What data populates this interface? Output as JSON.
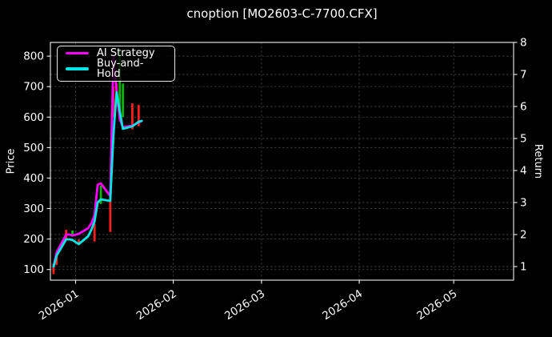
{
  "window": {
    "title": "cnoption [MO2603-C-7700.CFX]"
  },
  "chart_data": {
    "type": "line",
    "subtype": "candlestick-plus-line",
    "title": "cnoption [MO2603-C-7700.CFX]",
    "x_axis": {
      "ticks": [
        "2026-01",
        "2026-02",
        "2026-03",
        "2026-04",
        "2026-05"
      ],
      "range": [
        "2025-12-24",
        "2026-05-20"
      ],
      "tick_rotation_deg": -33
    },
    "left_axis": {
      "label": "Price",
      "ticks": [
        100,
        200,
        300,
        400,
        500,
        600,
        700,
        800
      ],
      "range": [
        65,
        845
      ]
    },
    "right_axis": {
      "label": "Return",
      "ticks": [
        1,
        2,
        3,
        4,
        5,
        6,
        7,
        8
      ],
      "range": [
        0.575,
        8.0
      ]
    },
    "legend": {
      "position": "upper-left",
      "entries": [
        {
          "label": "AI Strategy",
          "color": "#ff00ff"
        },
        {
          "label": "Buy-and-Hold",
          "color": "#00e6e6"
        }
      ]
    },
    "grid": {
      "on": true,
      "style": "dashed"
    },
    "dates": [
      "2025-12-25",
      "2025-12-26",
      "2025-12-29",
      "2025-12-30",
      "2025-12-31",
      "2026-01-02",
      "2026-01-05",
      "2026-01-06",
      "2026-01-07",
      "2026-01-08",
      "2026-01-09",
      "2026-01-12",
      "2026-01-13",
      "2026-01-14",
      "2026-01-15",
      "2026-01-16",
      "2026-01-19",
      "2026-01-20",
      "2026-01-21",
      "2026-01-22"
    ],
    "series": [
      {
        "name": "AI Strategy",
        "axis": "return",
        "color": "#ff00ff",
        "values": [
          1.0,
          1.45,
          2.0,
          2.0,
          1.97,
          2.02,
          2.2,
          2.35,
          2.6,
          3.55,
          3.6,
          3.2,
          7.55,
          6.5,
          5.6,
          5.35,
          5.4,
          5.45,
          5.5,
          5.55
        ]
      },
      {
        "name": "Buy-and-Hold",
        "axis": "return",
        "color": "#00e6e6",
        "values": [
          1.0,
          1.35,
          1.85,
          1.85,
          1.83,
          1.7,
          1.95,
          2.15,
          2.4,
          3.0,
          3.1,
          3.05,
          5.1,
          6.45,
          5.85,
          5.3,
          5.38,
          5.45,
          5.52,
          5.55
        ]
      }
    ],
    "candles": [
      {
        "date": "2025-12-25",
        "low": 85,
        "high": 120,
        "dir": "up"
      },
      {
        "date": "2025-12-26",
        "low": 115,
        "high": 155,
        "dir": "up"
      },
      {
        "date": "2025-12-29",
        "low": 200,
        "high": 230,
        "dir": "up"
      },
      {
        "date": "2025-12-31",
        "low": 208,
        "high": 228,
        "dir": "down"
      },
      {
        "date": "2026-01-02",
        "low": 180,
        "high": 198,
        "dir": "up"
      },
      {
        "date": "2026-01-07",
        "low": 192,
        "high": 250,
        "dir": "up"
      },
      {
        "date": "2026-01-09",
        "low": 315,
        "high": 375,
        "dir": "down"
      },
      {
        "date": "2026-01-12",
        "low": 223,
        "high": 355,
        "dir": "up"
      },
      {
        "date": "2026-01-13",
        "low": 600,
        "high": 700,
        "dir": "up"
      },
      {
        "date": "2026-01-14",
        "low": 640,
        "high": 710,
        "dir": "up"
      },
      {
        "date": "2026-01-15",
        "low": 610,
        "high": 825,
        "dir": "down"
      },
      {
        "date": "2026-01-16",
        "low": 600,
        "high": 710,
        "dir": "down"
      },
      {
        "date": "2026-01-19",
        "low": 560,
        "high": 645,
        "dir": "up"
      },
      {
        "date": "2026-01-21",
        "low": 570,
        "high": 640,
        "dir": "up"
      }
    ],
    "colors": {
      "background": "#000000",
      "text": "#ffffff",
      "grid": "#3d3d3d",
      "spine": "#f2f2f2",
      "candle_up": "#ff1f1f",
      "candle_down": "#00b800"
    }
  }
}
